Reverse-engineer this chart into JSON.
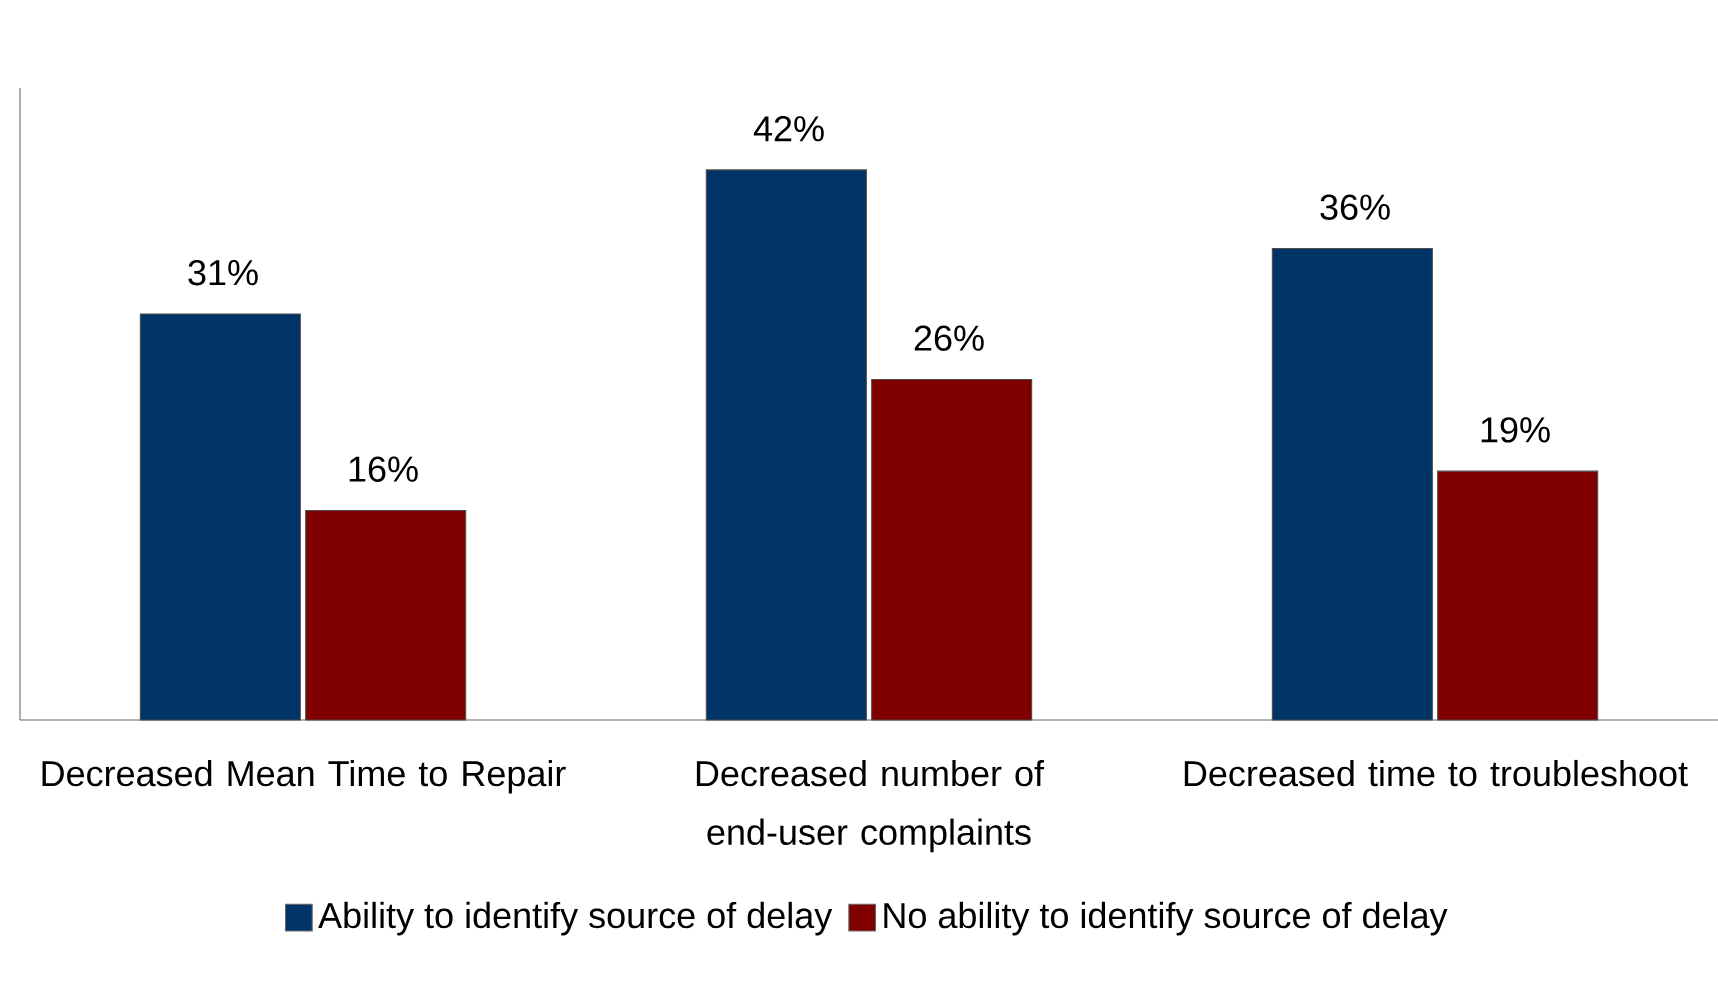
{
  "chart_data": {
    "type": "bar",
    "categories": [
      "Decreased Mean Time to Repair",
      "Decreased number of end-user complaints",
      "Decreased time to troubleshoot"
    ],
    "series": [
      {
        "name": "Ability to identify source of delay",
        "color": "#003366",
        "values": [
          31,
          42,
          36
        ],
        "value_labels": [
          "31%",
          "42%",
          "36%"
        ]
      },
      {
        "name": "No ability to identify source of delay",
        "color": "#800000",
        "values": [
          16,
          26,
          19
        ],
        "value_labels": [
          "16%",
          "26%",
          "19%"
        ]
      }
    ],
    "legend": "bottom"
  }
}
